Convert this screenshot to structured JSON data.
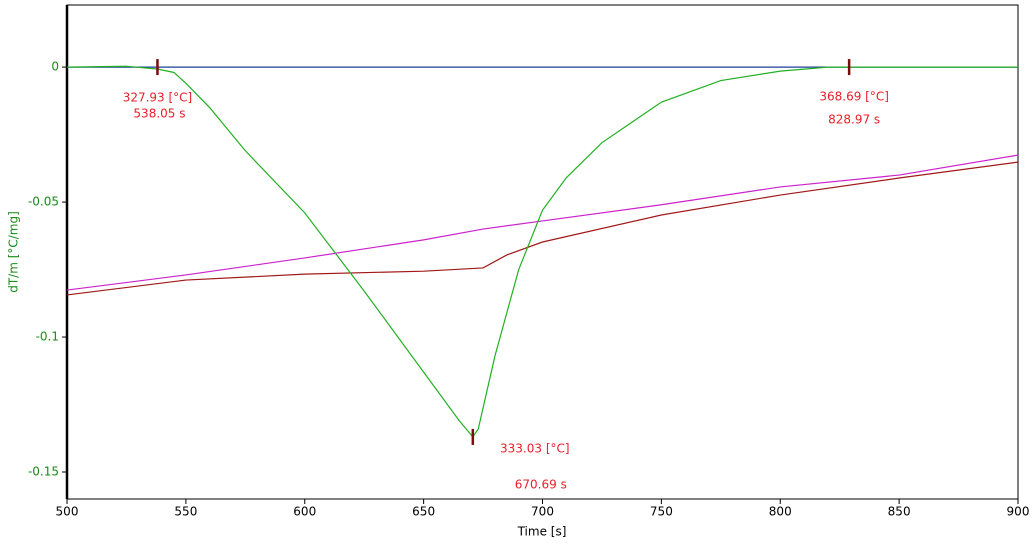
{
  "chart_data": {
    "type": "line",
    "xlabel": "Time [s]",
    "ylabel": "dT/m  [°C/mg]",
    "xlim": [
      500,
      900
    ],
    "xticks": [
      500,
      550,
      600,
      650,
      700,
      750,
      800,
      850,
      900
    ],
    "ylim": [
      -0.16,
      0.023
    ],
    "yticks": [
      0,
      -0.05,
      -0.1,
      -0.15
    ],
    "series": [
      {
        "color": "#1a3f9a",
        "x": [
          500,
          900
        ],
        "values": [
          0,
          0
        ]
      },
      {
        "color": "#cc22cc",
        "x": [
          500,
          550,
          600,
          650,
          675,
          700,
          750,
          800,
          850,
          900
        ],
        "values": [
          -0.0826,
          -0.077,
          -0.0707,
          -0.064,
          -0.06,
          -0.057,
          -0.051,
          -0.0444,
          -0.04,
          -0.0326
        ]
      },
      {
        "color": "#a01818",
        "x": [
          500,
          550,
          600,
          650,
          675,
          685,
          700,
          750,
          800,
          850,
          900
        ],
        "values": [
          -0.0844,
          -0.0789,
          -0.0767,
          -0.0756,
          -0.0744,
          -0.0696,
          -0.0648,
          -0.0548,
          -0.0474,
          -0.0411,
          -0.0352
        ]
      },
      {
        "color": "#22b022",
        "x": [
          500,
          525,
          538,
          545,
          550,
          560,
          575,
          600,
          625,
          650,
          665,
          670.69,
          673,
          680,
          690,
          700,
          710,
          725,
          750,
          775,
          800,
          820,
          828.97,
          850,
          900
        ],
        "values": [
          0,
          0.0003,
          -0.0007,
          -0.002,
          -0.006,
          -0.015,
          -0.031,
          -0.054,
          -0.083,
          -0.113,
          -0.131,
          -0.137,
          -0.134,
          -0.107,
          -0.075,
          -0.053,
          -0.041,
          -0.028,
          -0.013,
          -0.005,
          -0.0015,
          0,
          0,
          0,
          0
        ]
      }
    ],
    "annotations": [
      {
        "x": 538.05,
        "y": 0,
        "temperature": "327.93 [°C]",
        "time": "538.05 s"
      },
      {
        "x": 670.69,
        "y": -0.137,
        "temperature": "333.03 [°C]",
        "time": "670.69 s"
      },
      {
        "x": 828.97,
        "y": 0,
        "temperature": "368.69 [°C]",
        "time": "828.97 s"
      }
    ]
  }
}
